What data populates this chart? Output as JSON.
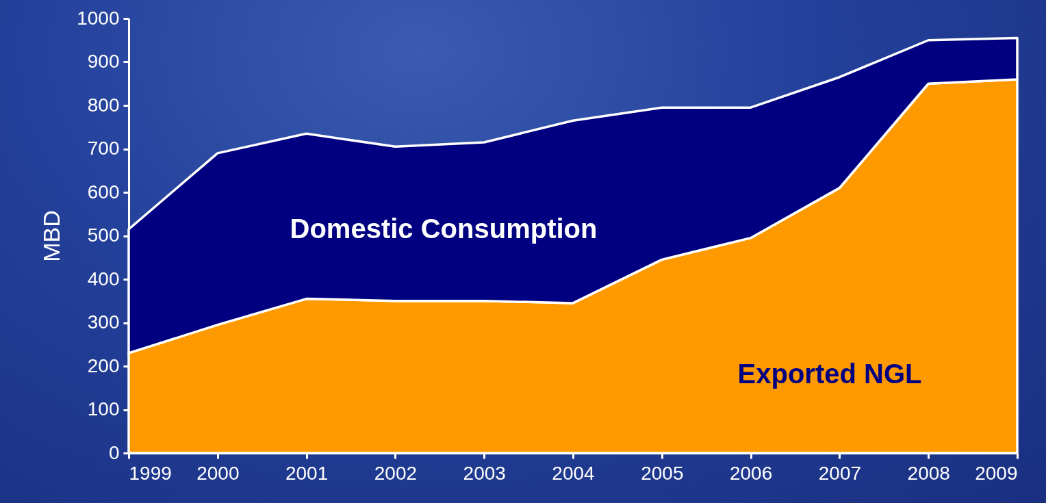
{
  "chart_data": {
    "type": "area",
    "stacked": true,
    "ylabel": "MBD",
    "x": [
      1999,
      2000,
      2001,
      2002,
      2003,
      2004,
      2005,
      2006,
      2007,
      2008,
      2009
    ],
    "xlim": [
      1999,
      2009
    ],
    "xticks": [
      1999,
      2000,
      2001,
      2002,
      2003,
      2004,
      2005,
      2006,
      2007,
      2008,
      2009
    ],
    "ylim": [
      0,
      1000
    ],
    "yticks": [
      0,
      100,
      200,
      300,
      400,
      500,
      600,
      700,
      800,
      900,
      1000
    ],
    "grid": false,
    "series": [
      {
        "name": "Exported NGL",
        "color": "#ff9900",
        "values": [
          230,
          295,
          355,
          350,
          350,
          345,
          445,
          495,
          610,
          850,
          860
        ]
      },
      {
        "name": "Domestic Consumption",
        "color": "#000080",
        "values": [
          285,
          395,
          380,
          355,
          365,
          420,
          350,
          300,
          255,
          100,
          95
        ]
      }
    ]
  }
}
